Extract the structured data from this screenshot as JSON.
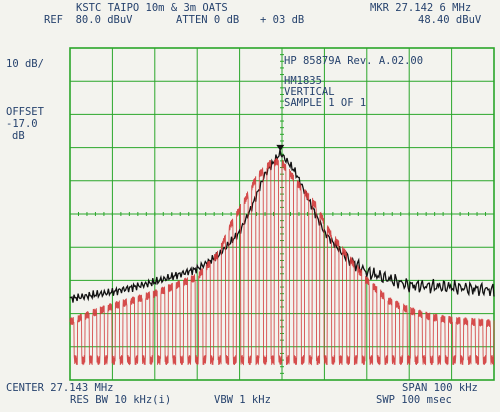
{
  "header": {
    "title": "KSTC TAIPO 10m & 3m OATS",
    "ref": "REF  80.0 dBuV",
    "atten": "ATTEN 0 dB",
    "offset_tag": "+ 03 dB",
    "marker_freq": "MKR 27.142 6 MHz",
    "marker_level": "48.40 dBuV"
  },
  "left_panel": {
    "scale": "10 dB/",
    "offset_label": "OFFSET",
    "offset_value": "-17.0",
    "offset_unit": "dB"
  },
  "annotation": {
    "instrument": "HP 85879A Rev. A.02.00",
    "device": "HM1835",
    "polarization": "VERTICAL",
    "sample": "SAMPLE 1 OF 1"
  },
  "footer": {
    "center": "CENTER 27.143 MHz",
    "span": "SPAN 100 kHz",
    "res_bw": "RES BW 10 kHz(i)",
    "vbw": "VBW 1 kHz",
    "sweep": "SWP 100 msec"
  },
  "colors": {
    "grid": "#2aa62a",
    "max_hold_trace": "#111111",
    "sample_trace": "#d23a3a",
    "text": "#27436e",
    "background": "#f3f3ee"
  },
  "chart_data": {
    "type": "line",
    "x_unit": "MHz",
    "y_unit": "dBuV",
    "xlim": [
      27.093,
      27.193
    ],
    "ylim": [
      -20,
      80
    ],
    "grid": true,
    "marker": {
      "x": 27.1426,
      "y": 48.4
    },
    "series": [
      {
        "x": [
          27.093,
          27.103,
          27.113,
          27.123,
          27.128,
          27.133,
          27.136,
          27.139,
          27.1426,
          27.146,
          27.149,
          27.153,
          27.158,
          27.163,
          27.173,
          27.183,
          27.193
        ],
        "y": [
          4.5,
          6.5,
          9.5,
          13.5,
          17.5,
          24.5,
          32.5,
          42,
          48.4,
          43,
          35,
          24.5,
          17,
          12.5,
          8.5,
          8,
          7
        ]
      },
      {
        "x": [
          27.093,
          27.098,
          27.103,
          27.108,
          27.113,
          27.118,
          27.123,
          27.128,
          27.131,
          27.134,
          27.137,
          27.14,
          27.1426,
          27.145,
          27.148,
          27.151,
          27.154,
          27.158,
          27.163,
          27.168,
          27.173,
          27.178,
          27.183,
          27.188,
          27.193
        ],
        "y": [
          -2.5,
          0,
          2.2,
          4,
          6,
          8.5,
          11,
          18,
          27,
          33.5,
          41,
          45,
          46,
          42,
          37,
          32.5,
          25,
          18,
          10,
          4,
          1,
          -1,
          -2,
          -2.5,
          -3
        ]
      }
    ]
  }
}
